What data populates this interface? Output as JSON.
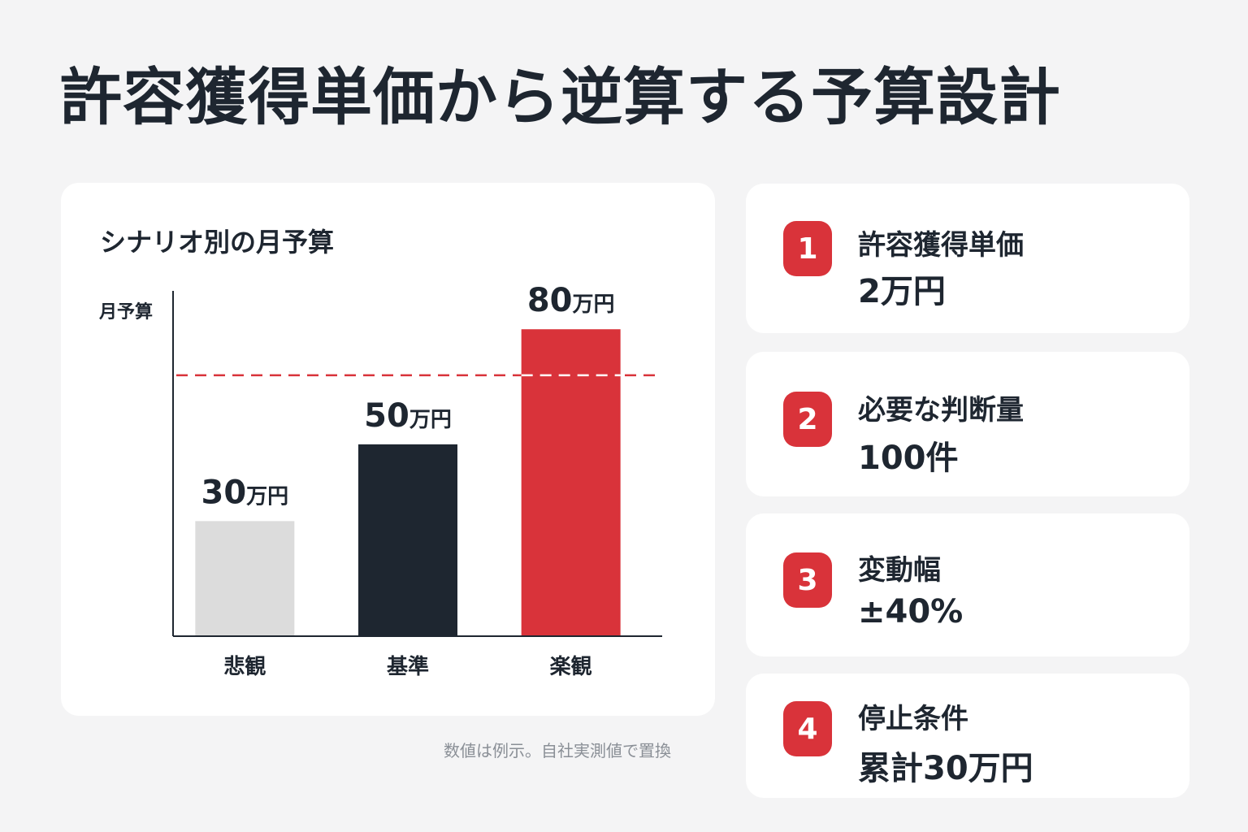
{
  "page": {
    "title": "許容獲得単価から逆算する予算設計"
  },
  "chart_data": {
    "type": "bar",
    "title": "シナリオ別の月予算",
    "ylabel": "月予算",
    "xlabel": "",
    "categories": [
      "悲観",
      "基準",
      "楽観"
    ],
    "values": [
      30,
      50,
      80
    ],
    "value_labels": [
      {
        "number": "30",
        "unit": "万円"
      },
      {
        "number": "50",
        "unit": "万円"
      },
      {
        "number": "80",
        "unit": "万円"
      }
    ],
    "bar_colors": [
      "#dcdcdc",
      "#1e2630",
      "#d9333a"
    ],
    "reference_line": {
      "value": 68,
      "color": "#d9333a",
      "style": "dashed"
    },
    "ylim": [
      0,
      90
    ],
    "grid": false,
    "legend": "none"
  },
  "footnote": "数値は例示。自社実測値で置換",
  "info_cards": [
    {
      "number": "1",
      "label": "許容獲得単価",
      "value": "2万円"
    },
    {
      "number": "2",
      "label": "必要な判断量",
      "value": "100件"
    },
    {
      "number": "3",
      "label": "変動幅",
      "value": "±40%"
    },
    {
      "number": "4",
      "label": "停止条件",
      "value": "累計30万円"
    }
  ],
  "colors": {
    "accent": "#d9333a",
    "dark": "#1e2630",
    "light_bar": "#dcdcdc",
    "background": "#f4f4f5"
  }
}
